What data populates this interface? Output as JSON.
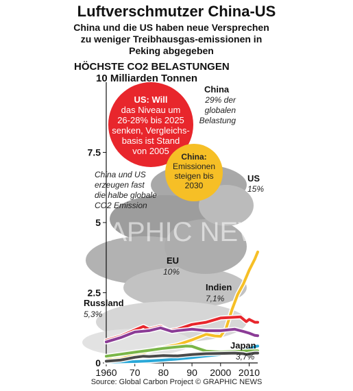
{
  "title": "Luftverschmutzer China-US",
  "subtitle": "China und die US haben neue Versprechen zu weniger Treibhausgas-emissionen in Peking abgegeben",
  "heading_line1": "HÖCHSTE CO2 BELASTUNGEN",
  "heading_line2": "10 Milliarden Tonnen",
  "source": "Source: Global Carbon Project  © GRAPHIC NEWS",
  "watermark": "GRAPHIC NEWS",
  "callouts": {
    "us_pledge": [
      "US: Will",
      "das Niveau um",
      "26-28% bis 2025",
      "senken, Vergleichs-",
      "basis ist Stand",
      "von 2005"
    ],
    "china_pledge": [
      "China:",
      "Emissionen",
      "steigen bis",
      "2030"
    ],
    "note": [
      "China und US",
      "erzeugen fast",
      "die halbe globale",
      "CO2 Emission"
    ]
  },
  "series_labels": {
    "china": {
      "name": "China",
      "share": [
        "29% der",
        "globalen",
        "Belastung"
      ]
    },
    "us": {
      "name": "US",
      "share": "15%"
    },
    "eu": {
      "name": "EU",
      "share": "10%"
    },
    "indien": {
      "name": "Indien",
      "share": "7,1%"
    },
    "russland": {
      "name": "Russland",
      "share": "5,3%"
    },
    "japan": {
      "name": "Japan",
      "share": "3,7%"
    }
  },
  "colors": {
    "china": "#f6bf26",
    "us": "#e8262c",
    "eu": "#8b3c96",
    "indien": "#2aa8d8",
    "russland": "#7ab648",
    "japan": "#4a4a4a",
    "callout_red": "#e8262c",
    "callout_yellow": "#f6bf26"
  },
  "chart_data": {
    "type": "line",
    "title": "HÖCHSTE CO2 BELASTUNGEN",
    "ylabel": "10 Milliarden Tonnen",
    "xlabel": "",
    "x_ticks": [
      "1960",
      "70",
      "80",
      "90",
      "2000",
      "2010"
    ],
    "y_ticks": [
      "0",
      "2.5",
      "5",
      "7.5"
    ],
    "xlim": [
      1960,
      2013
    ],
    "ylim": [
      0,
      10
    ],
    "grid": false,
    "series": [
      {
        "name": "China",
        "color": "#f6bf26",
        "x": [
          1960,
          1962,
          1965,
          1970,
          1975,
          1978,
          1980,
          1985,
          1990,
          1995,
          1998,
          2000,
          2002,
          2004,
          2006,
          2008,
          2010,
          2012,
          2013
        ],
        "y": [
          0.21,
          0.12,
          0.15,
          0.28,
          0.42,
          0.53,
          0.55,
          0.65,
          0.82,
          1.02,
          0.96,
          0.95,
          1.25,
          1.9,
          2.44,
          2.82,
          3.3,
          3.7,
          3.95
        ]
      },
      {
        "name": "US",
        "color": "#e8262c",
        "x": [
          1960,
          1965,
          1970,
          1973,
          1975,
          1979,
          1982,
          1985,
          1990,
          1995,
          2000,
          2005,
          2007,
          2009,
          2010,
          2012,
          2013
        ],
        "y": [
          0.8,
          0.95,
          1.17,
          1.3,
          1.2,
          1.3,
          1.15,
          1.2,
          1.37,
          1.45,
          1.6,
          1.63,
          1.64,
          1.47,
          1.55,
          1.45,
          1.45
        ]
      },
      {
        "name": "EU",
        "color": "#8b3c96",
        "x": [
          1960,
          1965,
          1970,
          1975,
          1979,
          1983,
          1985,
          1990,
          1995,
          2000,
          2005,
          2008,
          2010,
          2012,
          2013
        ],
        "y": [
          0.75,
          0.9,
          1.1,
          1.15,
          1.25,
          1.12,
          1.15,
          1.2,
          1.15,
          1.15,
          1.2,
          1.12,
          1.06,
          0.98,
          0.97
        ]
      },
      {
        "name": "Indien",
        "color": "#2aa8d8",
        "x": [
          1960,
          1965,
          1970,
          1975,
          1980,
          1985,
          1990,
          1995,
          2000,
          2005,
          2008,
          2010,
          2012,
          2013
        ],
        "y": [
          0.03,
          0.04,
          0.05,
          0.07,
          0.1,
          0.14,
          0.19,
          0.25,
          0.3,
          0.38,
          0.45,
          0.5,
          0.58,
          0.6
        ]
      },
      {
        "name": "Russland",
        "color": "#7ab648",
        "x": [
          1960,
          1965,
          1970,
          1975,
          1980,
          1985,
          1988,
          1990,
          1992,
          1995,
          1998,
          2000,
          2005,
          2010,
          2013
        ],
        "y": [
          0.24,
          0.31,
          0.38,
          0.45,
          0.52,
          0.57,
          0.6,
          0.59,
          0.52,
          0.42,
          0.4,
          0.39,
          0.41,
          0.43,
          0.43
        ]
      },
      {
        "name": "Japan",
        "color": "#4a4a4a",
        "x": [
          1960,
          1965,
          1970,
          1973,
          1975,
          1980,
          1985,
          1990,
          1995,
          2000,
          2005,
          2008,
          2009,
          2010,
          2012,
          2013
        ],
        "y": [
          0.06,
          0.1,
          0.2,
          0.24,
          0.23,
          0.26,
          0.25,
          0.3,
          0.33,
          0.34,
          0.35,
          0.33,
          0.3,
          0.32,
          0.35,
          0.35
        ]
      }
    ]
  }
}
